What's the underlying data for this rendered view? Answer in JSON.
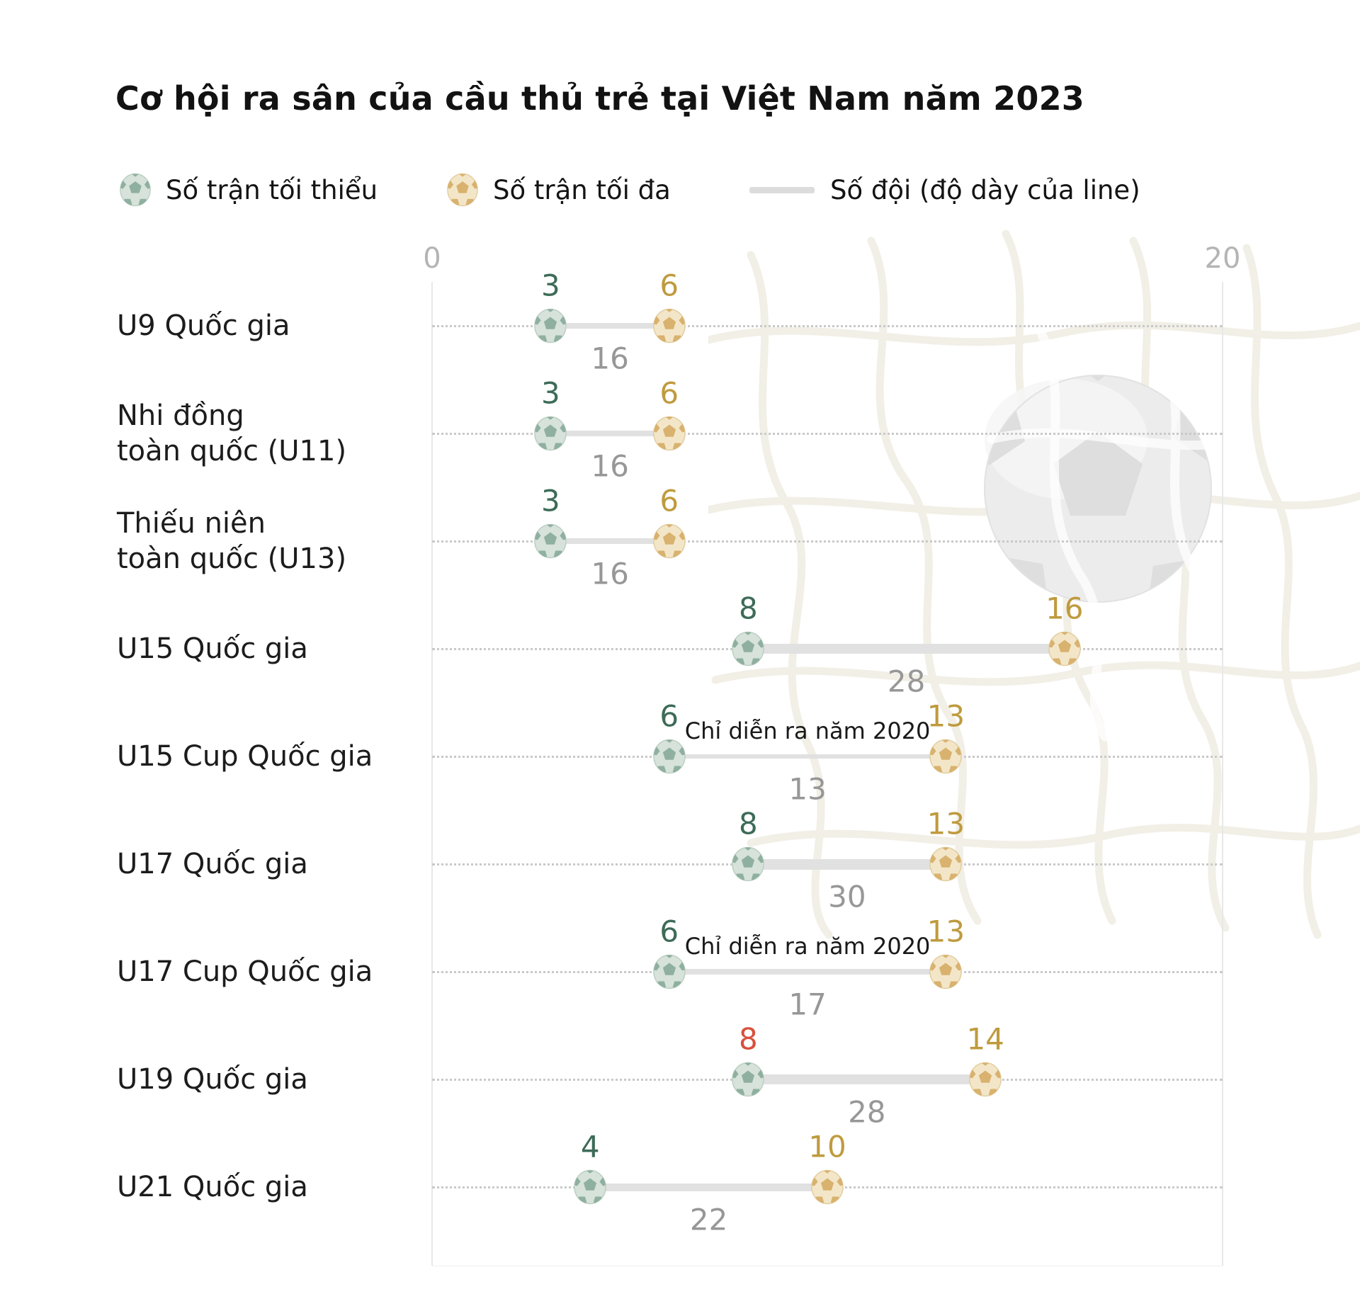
{
  "title": "Cơ hội ra sân của cầu thủ trẻ tại Việt Nam năm 2023",
  "legend": {
    "min_label": "Số trận tối thiểu",
    "max_label": "Số trận tối đa",
    "teams_label": "Số đội (độ dày của line)"
  },
  "colors": {
    "min_value": "#3d6b58",
    "max_value": "#bf9b3e",
    "teams_value": "#979797",
    "highlight_min_value": "#d8503b",
    "min_ball": {
      "base": "#d6e2da",
      "patch": "#8fb0a0",
      "rim": "#bccfc3"
    },
    "max_ball": {
      "base": "#f3e6c8",
      "patch": "#d8b26e",
      "rim": "#e2cd9f"
    },
    "connector": "#e1e1e1",
    "gridline": "#c9c9c9",
    "axis_tick": "#b4b4b4"
  },
  "chart_data": {
    "type": "dumbbell",
    "title": "Cơ hội ra sân của cầu thủ trẻ tại Việt Nam năm 2023",
    "x_axis": {
      "min": 0,
      "max": 20,
      "tick_labels": [
        "0",
        "20"
      ],
      "grid": "dotted horizontal row lines"
    },
    "legend_position": "top",
    "line_thickness_encoding": "Số đội (độ dày của line)",
    "categories": [
      "U9 Quốc gia",
      "Nhi đồng\ntoàn quốc (U11)",
      "Thiếu niên\ntoàn quốc (U13)",
      "U15 Quốc gia",
      "U15 Cup Quốc gia",
      "U17 Quốc gia",
      "U17 Cup Quốc gia",
      "U19 Quốc gia",
      "U21 Quốc gia"
    ],
    "series": [
      {
        "name": "Số trận tối thiểu",
        "values": [
          3,
          3,
          3,
          8,
          6,
          8,
          6,
          8,
          4
        ]
      },
      {
        "name": "Số trận tối đa",
        "values": [
          6,
          6,
          6,
          16,
          13,
          13,
          13,
          14,
          10
        ]
      },
      {
        "name": "Số đội",
        "values": [
          16,
          16,
          16,
          28,
          13,
          30,
          17,
          28,
          22
        ]
      }
    ],
    "annotations": [
      {
        "row": 4,
        "text": "Chỉ diễn ra năm 2020"
      },
      {
        "row": 6,
        "text": "Chỉ diễn ra năm 2020"
      }
    ],
    "highlights": [
      {
        "row": 7,
        "series": "min",
        "color": "#d8503b",
        "meaning": "highlighted minimum value 8 of U19 Quốc gia shown in red"
      }
    ]
  }
}
